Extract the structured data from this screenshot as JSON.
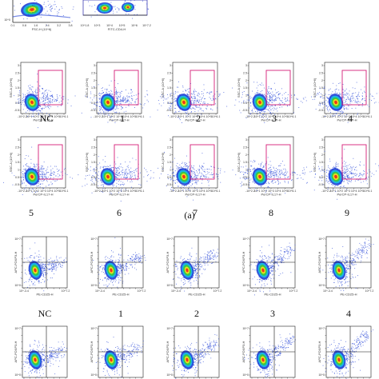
{
  "figure": {
    "part_label": "(a)",
    "colors": {
      "density_low": "#1f3fd6",
      "density_mid": "#19b8e6",
      "density_mid2": "#3cc93c",
      "density_high": "#f2e21c",
      "density_peak": "#f02a1a",
      "gate": "#d61e78",
      "quadrant": "#111111",
      "axis": "#222222"
    }
  },
  "chart_data": [
    {
      "type": "scatter",
      "plot": "top-left-cropped",
      "xlabel": "FSC-H (10^6)",
      "xticks": [
        "0.1",
        "0.8",
        "1.6",
        "2.4",
        "3.2",
        "3.8"
      ],
      "yticks": [
        "10^0"
      ]
    },
    {
      "type": "scatter",
      "plot": "top-right-cropped",
      "xlabel": "FITC-CD4-H",
      "xticks": [
        "10^1.8",
        "10^3",
        "10^4",
        "10^5",
        "10^6",
        "10^7.2"
      ]
    },
    {
      "type": "scatter",
      "group": "IL-17 gating",
      "xlabel": "PerCP-IL17-H",
      "ylabel": "SSC-A (10^6)",
      "xticks": [
        "-10^2.2",
        "10^1",
        "10^2",
        "10^3",
        "10^4",
        "10^5",
        "10^6.1"
      ],
      "yticks": [
        "-0.5",
        "0.5",
        "1",
        "1.5",
        "2",
        "2.5",
        "3"
      ],
      "gate": "rectangle",
      "samples": [
        "NC",
        "1",
        "2",
        "3",
        "4",
        "5",
        "6",
        "7",
        "8",
        "9"
      ]
    },
    {
      "type": "scatter",
      "group": "Treg quadrant",
      "xlabel": "PE-CD25-H",
      "ylabel": "APC-FOXP3-H",
      "xticks": [
        "10^-3.4",
        "10^1",
        "10^2",
        "10^3",
        "10^4",
        "10^5",
        "10^6",
        "10^7.2"
      ],
      "yticks": [
        "10^0",
        "10^1",
        "10^2",
        "10^3",
        "10^4",
        "10^5",
        "10^6",
        "10^7"
      ],
      "gate": "quadrant",
      "samples": [
        "NC",
        "1",
        "2",
        "3",
        "4"
      ]
    }
  ]
}
